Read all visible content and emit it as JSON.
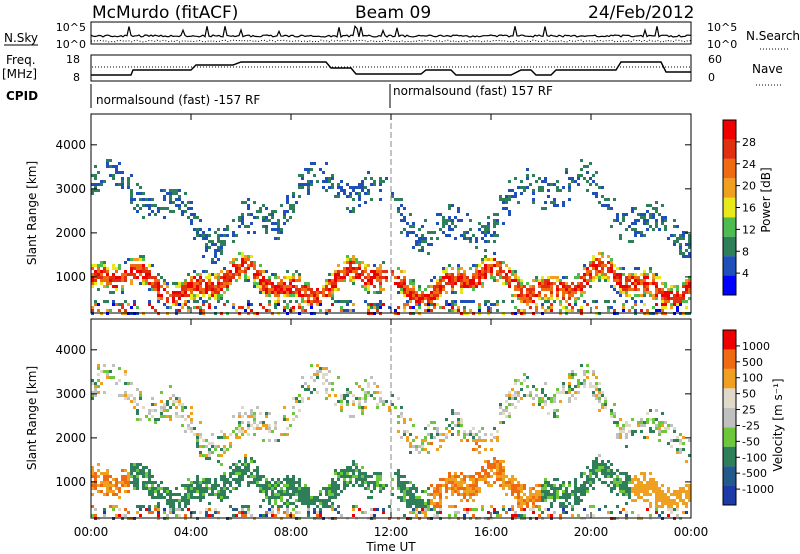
{
  "header": {
    "station": "McMurdo (fitACF)",
    "beam": "Beam 09",
    "date": "24/Feb/2012"
  },
  "aux_panels": {
    "nsky_label": "N.Sky",
    "nsearch_label": "N.Search",
    "nsky_ticks": [
      "10^5",
      "10^0"
    ],
    "nsearch_ticks": [
      "10^5",
      "10^0"
    ],
    "freq_label": "Freq.",
    "freq_unit": "[MHz]",
    "freq_ticks": [
      "18",
      "8"
    ],
    "nave_label": "Nave",
    "nave_ticks": [
      "60",
      "0"
    ],
    "cpid_label": "CPID",
    "cpid_segments": [
      "normalsound (fast) -157 RF",
      "normalsound (fast) 157 RF"
    ]
  },
  "colors": {
    "power_scale": [
      "#0000ff",
      "#1f4fb8",
      "#2e7e5a",
      "#4dbb4d",
      "#e8e81a",
      "#f0a020",
      "#ef6a10",
      "#e03010",
      "#ee0000"
    ],
    "velocity_scale": [
      "#1c3aa8",
      "#24598c",
      "#2e7e5a",
      "#6cc73a",
      "#c0c0c0",
      "#e0d8c8",
      "#f0a020",
      "#ef6a10",
      "#ee0000"
    ]
  },
  "chart_data": [
    {
      "type": "heatmap",
      "title": "Power",
      "ylabel": "Slant Range [km]",
      "xlabel": "Time UT",
      "x_ticks": [
        "00:00",
        "04:00",
        "08:00",
        "12:00",
        "16:00",
        "20:00",
        "00:00"
      ],
      "y_ticks": [
        "1000",
        "2000",
        "3000",
        "4000"
      ],
      "ylim": [
        180,
        4700
      ],
      "colorbar_label": "Power [dB]",
      "colorbar_ticks": [
        "4",
        "8",
        "12",
        "16",
        "20",
        "24",
        "28"
      ],
      "colorbar_range": [
        0,
        32
      ]
    },
    {
      "type": "heatmap",
      "title": "Velocity",
      "ylabel": "Slant Range [km]",
      "xlabel": "Time UT",
      "x_ticks": [
        "00:00",
        "04:00",
        "08:00",
        "12:00",
        "16:00",
        "20:00",
        "00:00"
      ],
      "y_ticks": [
        "1000",
        "2000",
        "3000",
        "4000"
      ],
      "ylim": [
        180,
        4700
      ],
      "colorbar_label": "Velocity [m s⁻¹]",
      "colorbar_ticks": [
        "1000",
        "500",
        "100",
        "50",
        "25",
        "-25",
        "-50",
        "-100",
        "-500",
        "-1000"
      ]
    }
  ]
}
